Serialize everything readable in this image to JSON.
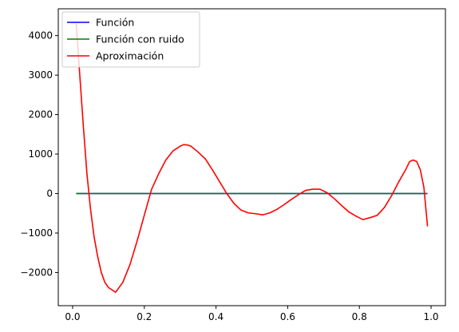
{
  "chart_data": {
    "type": "line",
    "title": "",
    "xlabel": "",
    "ylabel": "",
    "xlim": [
      -0.04,
      1.04
    ],
    "ylim": [
      -2840,
      4680
    ],
    "grid": false,
    "legend": {
      "placement": "top-left"
    },
    "x_ticks": [
      {
        "value": 0.0,
        "label": "0.0"
      },
      {
        "value": 0.2,
        "label": "0.2"
      },
      {
        "value": 0.4,
        "label": "0.4"
      },
      {
        "value": 0.6,
        "label": "0.6"
      },
      {
        "value": 0.8,
        "label": "0.8"
      },
      {
        "value": 1.0,
        "label": "1.0"
      }
    ],
    "y_ticks": [
      {
        "value": -2000,
        "label": "−2000"
      },
      {
        "value": -1000,
        "label": "−1000"
      },
      {
        "value": 0,
        "label": "0"
      },
      {
        "value": 1000,
        "label": "1000"
      },
      {
        "value": 2000,
        "label": "2000"
      },
      {
        "value": 3000,
        "label": "3000"
      },
      {
        "value": 4000,
        "label": "4000"
      }
    ],
    "series": [
      {
        "name": "Función",
        "color": "#0000ff",
        "x": [
          0.01,
          0.1,
          0.2,
          0.3,
          0.4,
          0.5,
          0.6,
          0.7,
          0.8,
          0.9,
          0.99
        ],
        "y": [
          0,
          0,
          0,
          0,
          0,
          0,
          0,
          0,
          0,
          0,
          0
        ]
      },
      {
        "name": "Función con ruido",
        "color": "#008000",
        "x": [
          0.01,
          0.1,
          0.2,
          0.3,
          0.4,
          0.5,
          0.6,
          0.7,
          0.8,
          0.9,
          0.99
        ],
        "y": [
          0,
          0,
          0,
          0,
          0,
          0,
          0,
          0,
          0,
          0,
          0
        ]
      },
      {
        "name": "Aproximación",
        "color": "#ff0000",
        "x": [
          0.01,
          0.02,
          0.03,
          0.04,
          0.05,
          0.06,
          0.07,
          0.08,
          0.09,
          0.1,
          0.12,
          0.14,
          0.16,
          0.18,
          0.2,
          0.22,
          0.24,
          0.26,
          0.28,
          0.3,
          0.31,
          0.32,
          0.33,
          0.35,
          0.37,
          0.39,
          0.41,
          0.43,
          0.45,
          0.47,
          0.49,
          0.51,
          0.53,
          0.55,
          0.57,
          0.59,
          0.61,
          0.63,
          0.65,
          0.67,
          0.69,
          0.71,
          0.73,
          0.75,
          0.77,
          0.79,
          0.81,
          0.83,
          0.85,
          0.87,
          0.89,
          0.91,
          0.93,
          0.94,
          0.95,
          0.96,
          0.97,
          0.98,
          0.99
        ],
        "y": [
          4300,
          3000,
          1700,
          500,
          -400,
          -1100,
          -1600,
          -2000,
          -2250,
          -2380,
          -2500,
          -2250,
          -1800,
          -1200,
          -550,
          100,
          500,
          850,
          1080,
          1200,
          1240,
          1230,
          1200,
          1050,
          880,
          600,
          300,
          0,
          -250,
          -420,
          -490,
          -510,
          -540,
          -490,
          -400,
          -280,
          -150,
          -30,
          80,
          110,
          110,
          20,
          -130,
          -300,
          -460,
          -570,
          -660,
          -610,
          -550,
          -350,
          -50,
          300,
          620,
          810,
          850,
          810,
          600,
          150,
          -830
        ]
      }
    ]
  }
}
